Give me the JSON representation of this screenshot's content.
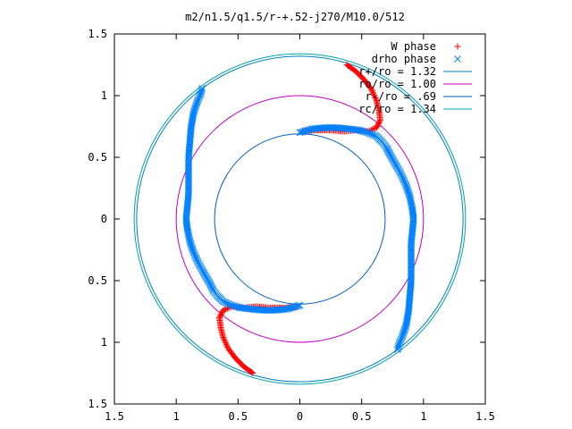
{
  "chart_data": {
    "type": "scatter",
    "title": "m2/n1.5/q1.5/r-+.52-j270/M10.0/512",
    "xlabel": "",
    "ylabel": "",
    "xlim": [
      -1.5,
      1.5
    ],
    "ylim": [
      -1.5,
      1.5
    ],
    "x_tick_labels": [
      "1.5",
      "1",
      "0.5",
      "0",
      "0.5",
      "1",
      "1.5"
    ],
    "y_tick_labels": [
      "1.5",
      "1",
      "0.5",
      "0",
      "0.5",
      "1",
      "1.5"
    ],
    "grid": false,
    "legend_position": "top-right",
    "series": [
      {
        "name": "W phase",
        "marker": "plus",
        "color": "#ff0000",
        "x": [
          -0.38,
          -0.45,
          -0.52,
          -0.58,
          -0.62,
          -0.64,
          -0.65,
          -0.62,
          -0.55,
          -0.45,
          -0.35,
          -0.25,
          -0.12,
          -0.02
        ],
        "y": [
          -1.25,
          -1.2,
          -1.13,
          -1.05,
          -0.96,
          -0.88,
          -0.8,
          -0.74,
          -0.71,
          -0.72,
          -0.71,
          -0.72,
          -0.72,
          -0.71
        ],
        "symmetric_copy": true
      },
      {
        "name": "drho phase",
        "marker": "cross",
        "color": "#0080ff",
        "x": [
          0.0,
          0.1,
          0.2,
          0.3,
          0.4,
          0.48,
          0.55,
          0.62,
          0.67,
          0.7,
          0.73,
          0.77,
          0.82,
          0.86,
          0.89,
          0.91,
          0.92,
          0.91,
          0.9,
          0.9,
          0.9,
          0.9,
          0.89,
          0.88,
          0.86,
          0.83,
          0.8,
          0.79
        ],
        "y": [
          0.7,
          0.73,
          0.74,
          0.74,
          0.73,
          0.72,
          0.7,
          0.67,
          0.62,
          0.58,
          0.52,
          0.45,
          0.36,
          0.27,
          0.18,
          0.08,
          0.0,
          -0.1,
          -0.2,
          -0.3,
          -0.4,
          -0.5,
          -0.62,
          -0.74,
          -0.86,
          -0.95,
          -1.02,
          -1.06
        ],
        "symmetric_copy": true
      }
    ],
    "circles": [
      {
        "label": "r+/ro = 1.32",
        "r": 1.32,
        "color": "#0080c0"
      },
      {
        "label": "ro/ro = 1.00",
        "r": 1.0,
        "color": "#c000c0"
      },
      {
        "label": "r-/ro = .69",
        "r": 0.69,
        "color": "#0060c0"
      },
      {
        "label": "rc/ro = 1.34",
        "r": 1.34,
        "color": "#00a0b0"
      }
    ]
  }
}
